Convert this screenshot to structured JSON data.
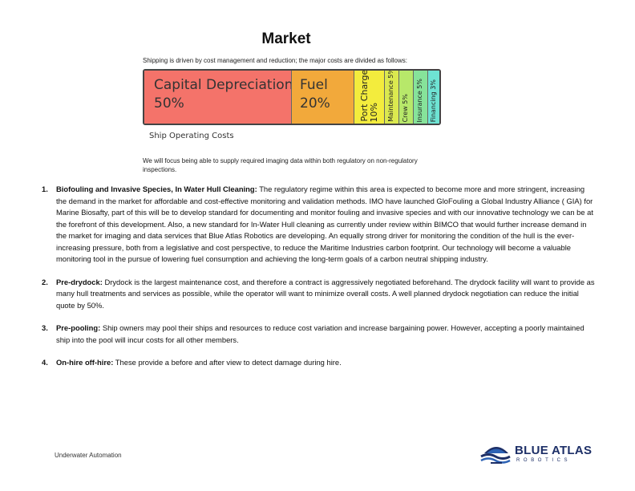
{
  "page": {
    "title": "Market",
    "intro": "Shipping is driven by cost management and reduction; the major costs are divided as follows:"
  },
  "cost_chart": {
    "segments": [
      {
        "label": "Capital Depreciation",
        "percent_text": "50%",
        "value": 50,
        "color": "#f4736a"
      },
      {
        "label": "Fuel",
        "percent_text": "20%",
        "value": 20,
        "color": "#f2a93b"
      },
      {
        "label": "Port Charges",
        "percent_text": "10%",
        "value": 10,
        "color": "#f3ec3d"
      },
      {
        "label": "Maintenance 5%",
        "percent_text": "",
        "value": 5,
        "color": "#dbe94f"
      },
      {
        "label": "Crew 5%",
        "percent_text": "",
        "value": 5,
        "color": "#b7e86a"
      },
      {
        "label": "Insurance 5%",
        "percent_text": "",
        "value": 5,
        "color": "#86e39a"
      },
      {
        "label": "Financing 3%",
        "percent_text": "",
        "value": 3,
        "color": "#6ee3d3"
      }
    ],
    "caption": "Ship Operating Costs"
  },
  "focus_text": "We will focus being able to supply required imaging data within both regulatory on non-regulatory inspections.",
  "items": [
    {
      "number": "1.",
      "heading": "Biofouling and Invasive Species, In Water Hull Cleaning:",
      "body": "The regulatory regime within this area is expected to become more and more stringent, increasing the demand in the market for affordable and cost-effective monitoring and validation methods. IMO have launched GloFouling a Global Industry Alliance ( GIA) for Marine Biosafty, part of this will be to develop standard for documenting and monitor fouling and invasive species and with our innovative technology we can be at the forefront of this development. Also, a new standard for In-Water Hull cleaning as currently under review within BIMCO that would further increase demand in the market for imaging and data services that Blue Atlas Robotics are developing. An equally strong driver for monitoring the condition of the hull is the ever-increasing pressure, both from a legislative and cost perspective, to reduce the Maritime Industries carbon footprint. Our technology will become a valuable monitoring tool in the pursue of lowering fuel consumption and achieving the long-term goals of a carbon neutral shipping industry."
    },
    {
      "number": "2.",
      "heading": "Pre-drydock:",
      "body": "Drydock is the largest maintenance cost, and therefore a contract is aggressively negotiated beforehand. The drydock facility will want to provide as many hull treatments and services as possible, while the operator will want to minimize overall costs. A well planned drydock negotiation can reduce the initial quote by 50%."
    },
    {
      "number": "3.",
      "heading": " Pre-pooling:",
      "body": "Ship owners may pool their ships and resources to reduce cost variation and increase bargaining power. However, accepting a poorly maintained ship into the pool will incur costs for all other members."
    },
    {
      "number": "4.",
      "heading": "On-hire off-hire:",
      "body": "These provide a before and after view to detect damage during hire."
    }
  ],
  "footer": {
    "left_text": "Underwater Automation",
    "logo_brand": "BLUE ATLAS",
    "logo_sub": "ROBOTICS"
  }
}
